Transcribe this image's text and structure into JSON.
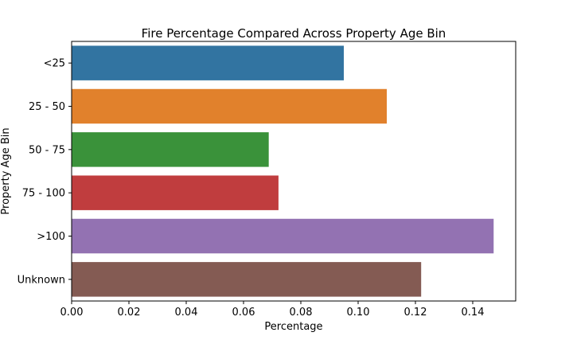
{
  "chart_data": {
    "type": "bar",
    "orientation": "horizontal",
    "title": "Fire Percentage Compared Across Property Age Bin",
    "xlabel": "Percentage",
    "ylabel": "Property Age Bin",
    "categories": [
      "<25",
      "25 - 50",
      "50 - 75",
      "75 - 100",
      ">100",
      "Unknown"
    ],
    "values": [
      0.095,
      0.11,
      0.0688,
      0.0722,
      0.1473,
      0.122
    ],
    "colors": [
      "#3274a1",
      "#e1812c",
      "#3a923a",
      "#c03d3e",
      "#9372b2",
      "#845b53"
    ],
    "xlim": [
      0,
      0.155
    ],
    "xticks": [
      "0.00",
      "0.02",
      "0.04",
      "0.06",
      "0.08",
      "0.10",
      "0.12",
      "0.14"
    ],
    "grid": false,
    "legend": "none"
  }
}
